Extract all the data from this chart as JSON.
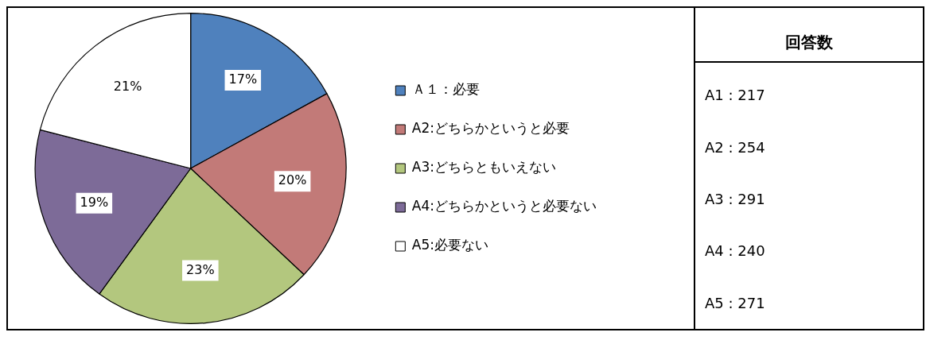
{
  "chart_data": {
    "type": "pie",
    "categories": [
      "Ａ１：必要",
      "A2:どちらかというと必要",
      "A3:どちらともいえない",
      "A4:どちらかというと必要ない",
      "A5:必要ない"
    ],
    "values": [
      17,
      20,
      23,
      19,
      21
    ],
    "value_labels": [
      "17%",
      "20%",
      "23%",
      "19%",
      "21%"
    ],
    "colors": [
      "#4f81bd",
      "#c27a78",
      "#b3c77e",
      "#7d6b98",
      "#ffffff"
    ],
    "legend": "right",
    "annotations": [
      "回答数",
      "A1 : 217",
      "A2 : 254",
      "A3 : 291",
      "A4 : 240",
      "A5 : 271"
    ]
  }
}
